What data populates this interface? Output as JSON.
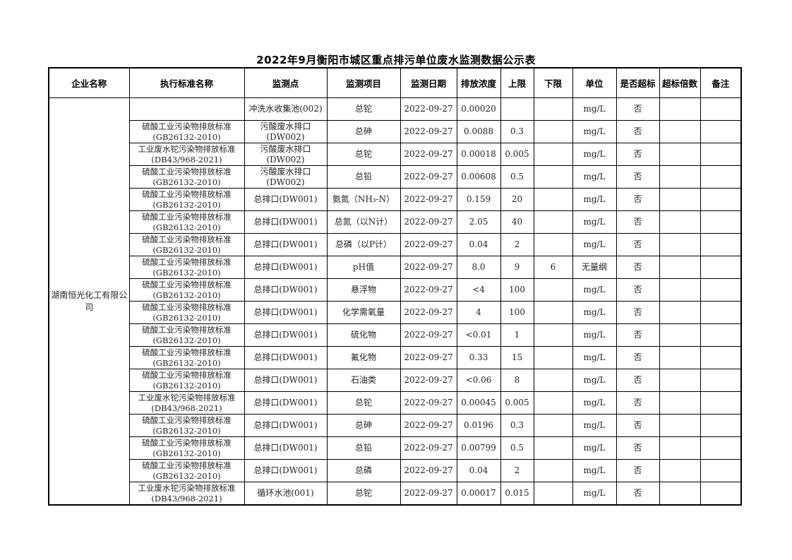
{
  "title": "2022年9月衡阳市城区重点排污单位废水监测数据公示表",
  "headers": [
    "企业名称",
    "执行标准名称",
    "监测点",
    "监测项目",
    "监测日期",
    "排放浓度",
    "上限",
    "下限",
    "单位",
    "是否超标",
    "超标倍数",
    "备注"
  ],
  "company": "湖南恒光化工有限公司",
  "rows": [
    {
      "std": "",
      "point": "冲洗水收集池(002)",
      "item": "总铊",
      "date": "2022-09-27",
      "conc": "0.00020",
      "upper": "",
      "lower": "",
      "unit": "mg/L",
      "exceed": "否",
      "times": "",
      "note": ""
    },
    {
      "std": "硫酸工业污染物排放标准\n(GB26132-2010)",
      "point": "污酸废水排口\n(DW002)",
      "item": "总砷",
      "date": "2022-09-27",
      "conc": "0.0088",
      "upper": "0.3",
      "lower": "",
      "unit": "mg/L",
      "exceed": "否",
      "times": "",
      "note": ""
    },
    {
      "std": "工业废水铊污染物排放标准\n(DB43/968-2021)",
      "point": "污酸废水排口\n(DW002)",
      "item": "总铊",
      "date": "2022-09-27",
      "conc": "0.00018",
      "upper": "0.005",
      "lower": "",
      "unit": "mg/L",
      "exceed": "否",
      "times": "",
      "note": ""
    },
    {
      "std": "硫酸工业污染物排放标准\n(GB26132-2010)",
      "point": "污酸废水排口\n(DW002)",
      "item": "总铅",
      "date": "2022-09-27",
      "conc": "0.00608",
      "upper": "0.5",
      "lower": "",
      "unit": "mg/L",
      "exceed": "否",
      "times": "",
      "note": ""
    },
    {
      "std": "硫酸工业污染物排放标准\n(GB26132-2010)",
      "point": "总排口(DW001)",
      "item": "氨氮（NH₃-N）",
      "date": "2022-09-27",
      "conc": "0.159",
      "upper": "20",
      "lower": "",
      "unit": "mg/L",
      "exceed": "否",
      "times": "",
      "note": ""
    },
    {
      "std": "硫酸工业污染物排放标准\n(GB26132-2010)",
      "point": "总排口(DW001)",
      "item": "总氮（以N计）",
      "date": "2022-09-27",
      "conc": "2.05",
      "upper": "40",
      "lower": "",
      "unit": "mg/L",
      "exceed": "否",
      "times": "",
      "note": ""
    },
    {
      "std": "硫酸工业污染物排放标准\n(GB26132-2010)",
      "point": "总排口(DW001)",
      "item": "总磷（以P计）",
      "date": "2022-09-27",
      "conc": "0.04",
      "upper": "2",
      "lower": "",
      "unit": "mg/L",
      "exceed": "否",
      "times": "",
      "note": ""
    },
    {
      "std": "硫酸工业污染物排放标准\n(GB26132-2010)",
      "point": "总排口(DW001)",
      "item": "pH值",
      "date": "2022-09-27",
      "conc": "8.0",
      "upper": "9",
      "lower": "6",
      "unit": "无量纲",
      "exceed": "否",
      "times": "",
      "note": ""
    },
    {
      "std": "硫酸工业污染物排放标准\n(GB26132-2010)",
      "point": "总排口(DW001)",
      "item": "悬浮物",
      "date": "2022-09-27",
      "conc": "<4",
      "upper": "100",
      "lower": "",
      "unit": "mg/L",
      "exceed": "否",
      "times": "",
      "note": ""
    },
    {
      "std": "硫酸工业污染物排放标准\n(GB26132-2010)",
      "point": "总排口(DW001)",
      "item": "化学需氧量",
      "date": "2022-09-27",
      "conc": "4",
      "upper": "100",
      "lower": "",
      "unit": "mg/L",
      "exceed": "否",
      "times": "",
      "note": ""
    },
    {
      "std": "硫酸工业污染物排放标准\n(GB26132-2010)",
      "point": "总排口(DW001)",
      "item": "硫化物",
      "date": "2022-09-27",
      "conc": "<0.01",
      "upper": "1",
      "lower": "",
      "unit": "mg/L",
      "exceed": "否",
      "times": "",
      "note": ""
    },
    {
      "std": "硫酸工业污染物排放标准\n(GB26132-2010)",
      "point": "总排口(DW001)",
      "item": "氟化物",
      "date": "2022-09-27",
      "conc": "0.33",
      "upper": "15",
      "lower": "",
      "unit": "mg/L",
      "exceed": "否",
      "times": "",
      "note": ""
    },
    {
      "std": "硫酸工业污染物排放标准\n(GB26132-2010)",
      "point": "总排口(DW001)",
      "item": "石油类",
      "date": "2022-09-27",
      "conc": "<0.06",
      "upper": "8",
      "lower": "",
      "unit": "mg/L",
      "exceed": "否",
      "times": "",
      "note": ""
    },
    {
      "std": "工业废水铊污染物排放标准\n(DB43/968-2021)",
      "point": "总排口(DW001)",
      "item": "总铊",
      "date": "2022-09-27",
      "conc": "0.00045",
      "upper": "0.005",
      "lower": "",
      "unit": "mg/L",
      "exceed": "否",
      "times": "",
      "note": ""
    },
    {
      "std": "硫酸工业污染物排放标准\n(GB26132-2010)",
      "point": "总排口(DW001)",
      "item": "总砷",
      "date": "2022-09-27",
      "conc": "0.0196",
      "upper": "0.3",
      "lower": "",
      "unit": "mg/L",
      "exceed": "否",
      "times": "",
      "note": ""
    },
    {
      "std": "硫酸工业污染物排放标准\n(GB26132-2010)",
      "point": "总排口(DW001)",
      "item": "总铅",
      "date": "2022-09-27",
      "conc": "0.00799",
      "upper": "0.5",
      "lower": "",
      "unit": "mg/L",
      "exceed": "否",
      "times": "",
      "note": ""
    },
    {
      "std": "硫酸工业污染物排放标准\n(GB26132-2010)",
      "point": "总排口(DW001)",
      "item": "总磷",
      "date": "2022-09-27",
      "conc": "0.04",
      "upper": "2",
      "lower": "",
      "unit": "mg/L",
      "exceed": "否",
      "times": "",
      "note": ""
    },
    {
      "std": "工业废水铊污染物排放标准\n(DB43/968-2021)",
      "point": "循环水池(001)",
      "item": "总铊",
      "date": "2022-09-27",
      "conc": "0.00017",
      "upper": "0.015",
      "lower": "",
      "unit": "mg/L",
      "exceed": "否",
      "times": "",
      "note": ""
    }
  ]
}
